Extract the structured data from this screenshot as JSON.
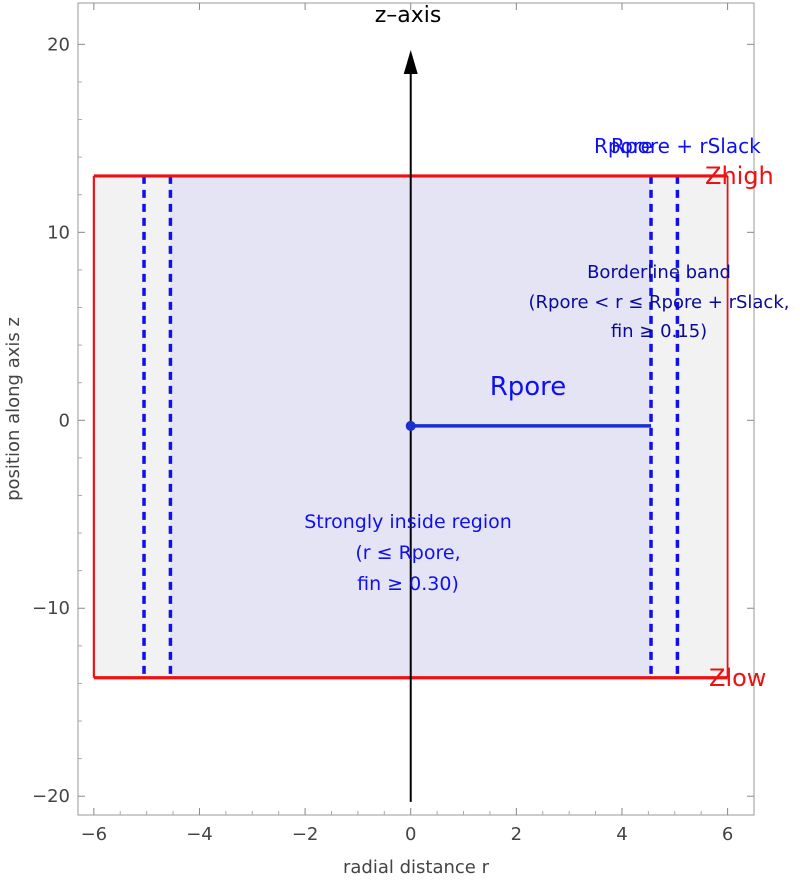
{
  "chart_data": {
    "type": "diagram",
    "xlabel": "radial distance  r",
    "ylabel": "position along axis  z",
    "xlim": [
      -6.3,
      6.5
    ],
    "ylim": [
      -21,
      22.2
    ],
    "x_ticks": [
      -6,
      -4,
      -2,
      0,
      2,
      4,
      6
    ],
    "y_ticks": [
      -20,
      -10,
      0,
      10,
      20
    ],
    "x_tick_labels": [
      "−6",
      "−4",
      "−2",
      "0",
      "2",
      "4",
      "6"
    ],
    "y_tick_labels": [
      "−20",
      "−10",
      "0",
      "10",
      "20"
    ],
    "zlow": -13.7,
    "zhigh": 13,
    "outer_r": 6,
    "rpore": 4.55,
    "rslack_edge": 5.05,
    "center_point": {
      "r": 0,
      "z": -0.3
    },
    "axis_line": {
      "r": 0,
      "z_start": -20.3,
      "z_end": 19.7
    },
    "colors": {
      "outer_fill": "#f2f2f2",
      "inner_fill": "#e4e4f5",
      "boundary": "#ee1111",
      "dashed": "#1010ee",
      "radius_line": "#1a2fd0",
      "axis": "#000000"
    },
    "labels": {
      "z_axis": "z–axis",
      "zhigh": "Zhigh",
      "zlow": "Zlow",
      "rpore": "Rpore",
      "rslack_overlap_a": "Rpore",
      "rslack_overlap_b": "Rpore + rSlack",
      "borderline": [
        "Borderline band",
        "(Rpore < r ≤ Rpore + rSlack,",
        "fin ≥ 0.15)"
      ],
      "strongly_inside": [
        "Strongly inside region",
        "(r ≤ Rpore,",
        "fin ≥ 0.30)"
      ]
    }
  }
}
